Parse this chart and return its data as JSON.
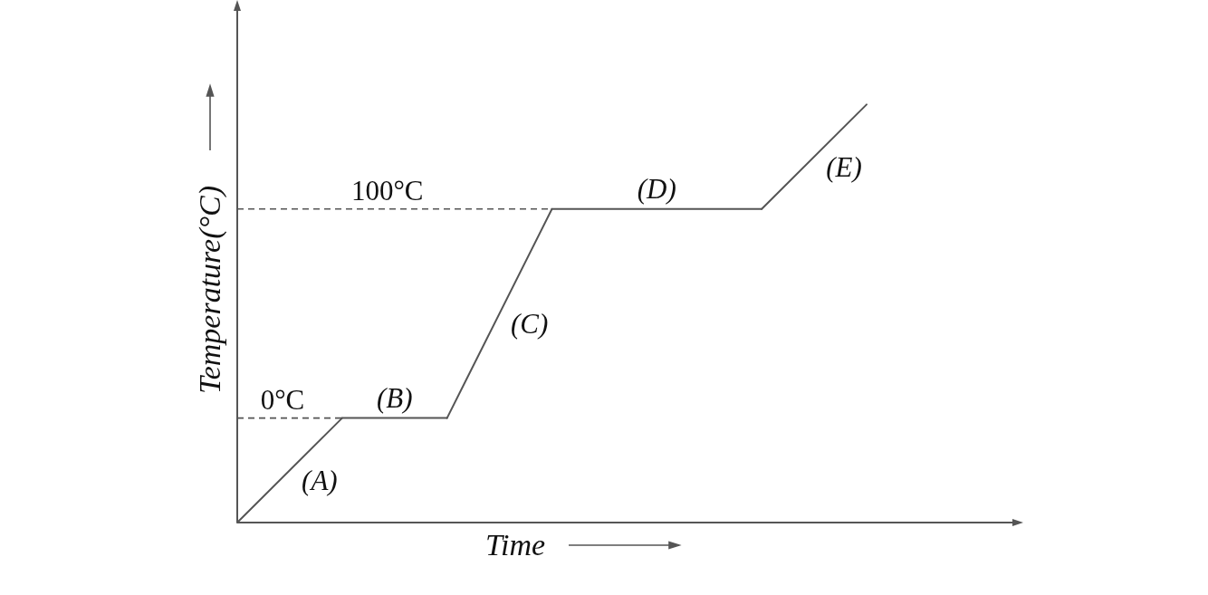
{
  "chart_data": {
    "type": "line",
    "xlabel": "Time",
    "ylabel": "Temperature(°C)",
    "categories": [
      null,
      null,
      null,
      null,
      null,
      null,
      null
    ],
    "ylim": [
      -50,
      200
    ],
    "series": [
      {
        "name": "(A)",
        "color": "#555555",
        "values": [
          -50,
          0,
          null,
          null,
          null,
          null,
          null
        ]
      },
      {
        "name": "(B)",
        "color": "#555555",
        "values": [
          null,
          0,
          0,
          null,
          null,
          null,
          null
        ]
      },
      {
        "name": "(C)",
        "color": "#555555",
        "values": [
          null,
          null,
          0,
          100,
          null,
          null,
          null
        ]
      },
      {
        "name": "(D)",
        "color": "#555555",
        "values": [
          null,
          null,
          null,
          100,
          100,
          100,
          null
        ]
      },
      {
        "name": "(E)",
        "color": "#555555",
        "values": [
          null,
          null,
          null,
          null,
          null,
          100,
          150
        ]
      }
    ],
    "ref_lines": [
      {
        "axis": "y",
        "value": 0,
        "label": "0°C",
        "line_style": "dashed"
      },
      {
        "axis": "y",
        "value": 100,
        "label": "100°C",
        "line_style": "dashed"
      }
    ]
  }
}
